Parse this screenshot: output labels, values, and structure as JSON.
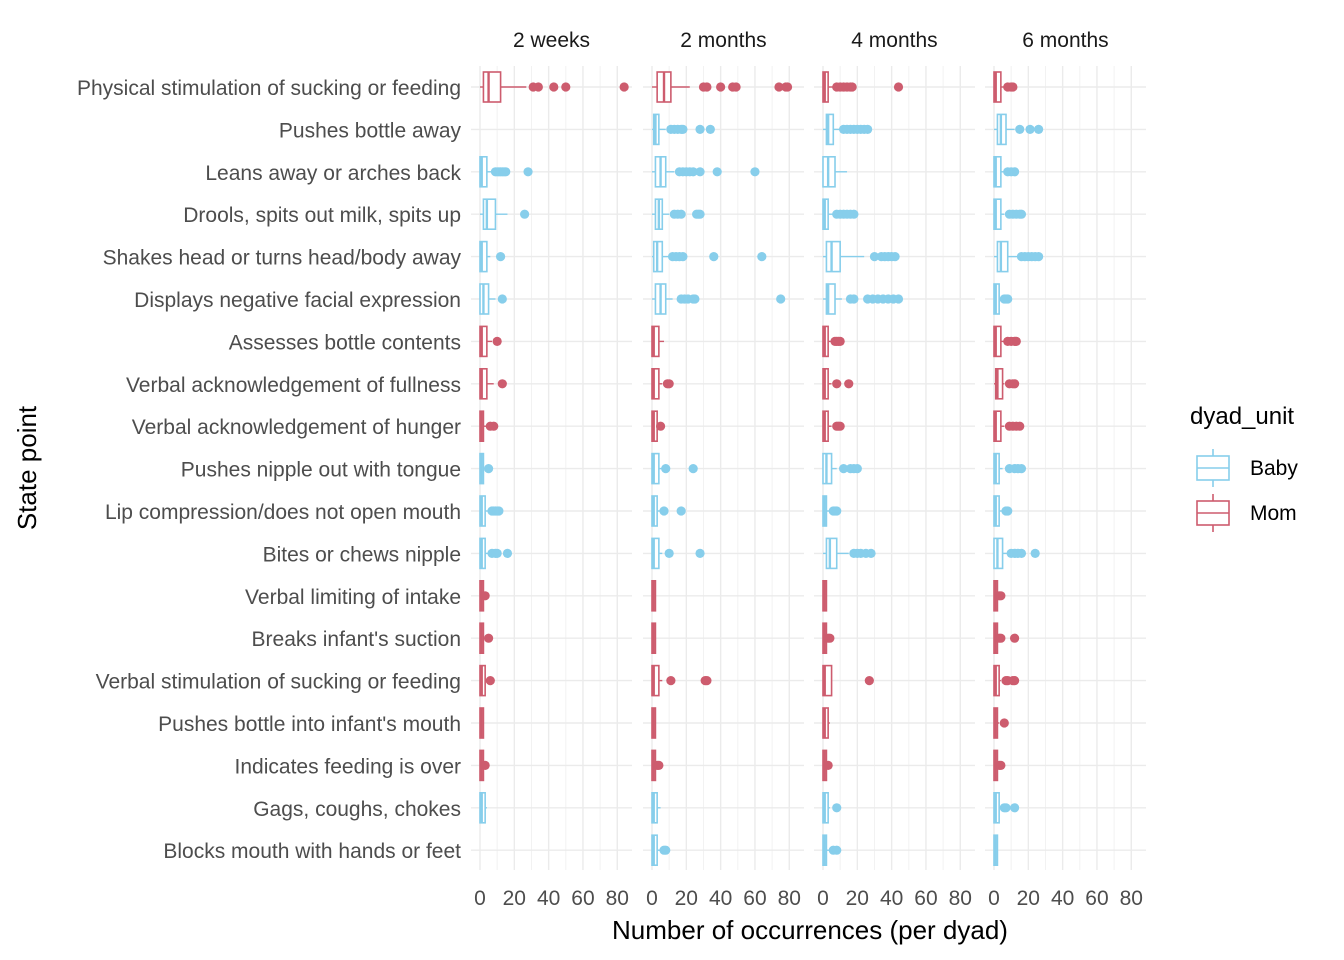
{
  "chart_data": {
    "type": "boxplot",
    "orientation": "horizontal",
    "facets": [
      "2 weeks",
      "2 months",
      "4 months",
      "6 months"
    ],
    "xlabel": "Number of occurrences (per dyad)",
    "ylabel": "State point",
    "xlim": [
      0,
      85
    ],
    "xticks": [
      "0",
      "20",
      "40",
      "60",
      "80"
    ],
    "legend": {
      "title": "dyad_unit",
      "position": "right",
      "entries": [
        {
          "label": "Baby",
          "color": "#87CEEB"
        },
        {
          "label": "Mom",
          "color": "#CD5C6E"
        }
      ]
    },
    "grid": true,
    "categories": [
      "Physical stimulation of sucking or feeding",
      "Pushes bottle away",
      "Leans away or arches back",
      "Drools, spits out milk, spits up",
      "Shakes head or turns head/body away",
      "Displays negative facial expression",
      "Assesses bottle contents",
      "Verbal acknowledgement of fullness",
      "Verbal acknowledgement of hunger",
      "Pushes nipple out with tongue",
      "Lip compression/does not open mouth",
      "Bites or chews nipple",
      "Verbal limiting of intake",
      "Breaks infant's suction",
      "Verbal stimulation of sucking or feeding",
      "Pushes bottle into infant's mouth",
      "Indicates feeding is over",
      "Gags, coughs, chokes",
      "Blocks mouth with hands or feet"
    ],
    "unit": [
      "Mom",
      "Baby",
      "Baby",
      "Baby",
      "Baby",
      "Baby",
      "Mom",
      "Mom",
      "Mom",
      "Baby",
      "Baby",
      "Baby",
      "Mom",
      "Mom",
      "Mom",
      "Mom",
      "Mom",
      "Baby",
      "Baby"
    ],
    "boxes": [
      [
        {
          "q1": 2,
          "med": 5,
          "q3": 12,
          "lo": 0,
          "hi": 27,
          "out": [
            31,
            34,
            43,
            50,
            84
          ]
        },
        null,
        {
          "q1": 0,
          "med": 1,
          "q3": 4,
          "lo": 0,
          "hi": 8,
          "out": [
            9,
            10,
            11,
            12,
            13,
            14,
            15,
            28
          ]
        },
        {
          "q1": 2,
          "med": 4,
          "q3": 9,
          "lo": 0,
          "hi": 16,
          "out": [
            26
          ]
        },
        {
          "q1": 0,
          "med": 1,
          "q3": 4,
          "lo": 0,
          "hi": 6,
          "out": [
            12
          ]
        },
        {
          "q1": 0,
          "med": 2,
          "q3": 5,
          "lo": 0,
          "hi": 9,
          "out": [
            13
          ]
        },
        {
          "q1": 0,
          "med": 1,
          "q3": 4,
          "lo": 0,
          "hi": 7,
          "out": [
            10
          ]
        },
        {
          "q1": 0,
          "med": 1,
          "q3": 4,
          "lo": 0,
          "hi": 8,
          "out": [
            13
          ]
        },
        {
          "q1": 0,
          "med": 1,
          "q3": 2,
          "lo": 0,
          "hi": 4,
          "out": [
            6,
            8
          ]
        },
        {
          "q1": 0,
          "med": 1,
          "q3": 2,
          "lo": 0,
          "hi": 4,
          "out": [
            5
          ]
        },
        {
          "q1": 0,
          "med": 1,
          "q3": 3,
          "lo": 0,
          "hi": 6,
          "out": [
            7,
            8,
            9,
            10,
            11
          ]
        },
        {
          "q1": 0,
          "med": 1,
          "q3": 3,
          "lo": 0,
          "hi": 5,
          "out": [
            7,
            9,
            10,
            16
          ]
        },
        {
          "q1": 0,
          "med": 1,
          "q3": 2,
          "lo": 0,
          "hi": 2,
          "out": [
            3
          ]
        },
        {
          "q1": 0,
          "med": 1,
          "q3": 2,
          "lo": 0,
          "hi": 3,
          "out": [
            5
          ]
        },
        {
          "q1": 0,
          "med": 1,
          "q3": 3,
          "lo": 0,
          "hi": 5,
          "out": [
            6
          ]
        },
        {
          "q1": 0,
          "med": 1,
          "q3": 2,
          "lo": 0,
          "hi": 2,
          "out": []
        },
        {
          "q1": 0,
          "med": 1,
          "q3": 2,
          "lo": 0,
          "hi": 3,
          "out": [
            3
          ]
        },
        {
          "q1": 0,
          "med": 1,
          "q3": 3,
          "lo": 0,
          "hi": 4,
          "out": []
        },
        null
      ],
      [
        {
          "q1": 3,
          "med": 7,
          "q3": 11,
          "lo": 0,
          "hi": 22,
          "out": [
            30,
            32,
            40,
            47,
            49,
            74,
            78,
            79
          ]
        },
        {
          "q1": 1,
          "med": 2,
          "q3": 4,
          "lo": 0,
          "hi": 8,
          "out": [
            11,
            13,
            15,
            17,
            18,
            28,
            34
          ]
        },
        {
          "q1": 2,
          "med": 5,
          "q3": 8,
          "lo": 0,
          "hi": 13,
          "out": [
            16,
            18,
            20,
            22,
            24,
            28,
            38,
            60
          ]
        },
        {
          "q1": 2,
          "med": 4,
          "q3": 6,
          "lo": 0,
          "hi": 10,
          "out": [
            13,
            15,
            17,
            26,
            27,
            28
          ]
        },
        {
          "q1": 1,
          "med": 3,
          "q3": 6,
          "lo": 0,
          "hi": 10,
          "out": [
            12,
            14,
            16,
            18,
            36,
            64
          ]
        },
        {
          "q1": 2,
          "med": 5,
          "q3": 8,
          "lo": 0,
          "hi": 12,
          "out": [
            17,
            19,
            21,
            24,
            25,
            75
          ]
        },
        {
          "q1": 0,
          "med": 1,
          "q3": 4,
          "lo": 0,
          "hi": 7,
          "out": []
        },
        {
          "q1": 0,
          "med": 1,
          "q3": 4,
          "lo": 0,
          "hi": 6,
          "out": [
            9,
            10
          ]
        },
        {
          "q1": 0,
          "med": 1,
          "q3": 3,
          "lo": 0,
          "hi": 5,
          "out": [
            5
          ]
        },
        {
          "q1": 0,
          "med": 1,
          "q3": 4,
          "lo": 0,
          "hi": 6,
          "out": [
            8,
            24
          ]
        },
        {
          "q1": 0,
          "med": 1,
          "q3": 3,
          "lo": 0,
          "hi": 5,
          "out": [
            7,
            17
          ]
        },
        {
          "q1": 0,
          "med": 1,
          "q3": 4,
          "lo": 0,
          "hi": 6,
          "out": [
            10,
            28
          ]
        },
        {
          "q1": 0,
          "med": 1,
          "q3": 2,
          "lo": 0,
          "hi": 2,
          "out": []
        },
        {
          "q1": 0,
          "med": 1,
          "q3": 2,
          "lo": 0,
          "hi": 2,
          "out": []
        },
        {
          "q1": 0,
          "med": 1,
          "q3": 4,
          "lo": 0,
          "hi": 6,
          "out": [
            11,
            31,
            32
          ]
        },
        {
          "q1": 0,
          "med": 1,
          "q3": 2,
          "lo": 0,
          "hi": 2,
          "out": []
        },
        {
          "q1": 0,
          "med": 1,
          "q3": 2,
          "lo": 0,
          "hi": 3,
          "out": [
            3,
            4
          ]
        },
        {
          "q1": 0,
          "med": 1,
          "q3": 3,
          "lo": 0,
          "hi": 5,
          "out": []
        },
        {
          "q1": 0,
          "med": 1,
          "q3": 3,
          "lo": 0,
          "hi": 5,
          "out": [
            7,
            8
          ]
        }
      ],
      [
        {
          "q1": 0,
          "med": 1,
          "q3": 3,
          "lo": 0,
          "hi": 6,
          "out": [
            8,
            10,
            12,
            14,
            16,
            17,
            44
          ]
        },
        {
          "q1": 2,
          "med": 3,
          "q3": 6,
          "lo": 0,
          "hi": 10,
          "out": [
            12,
            14,
            16,
            18,
            20,
            22,
            24,
            26
          ]
        },
        {
          "q1": 0,
          "med": 3,
          "q3": 7,
          "lo": 0,
          "hi": 14,
          "out": []
        },
        {
          "q1": 0,
          "med": 1,
          "q3": 3,
          "lo": 0,
          "hi": 6,
          "out": [
            8,
            10,
            12,
            14,
            16,
            18
          ]
        },
        {
          "q1": 2,
          "med": 5,
          "q3": 10,
          "lo": 0,
          "hi": 24,
          "out": [
            30,
            34,
            36,
            38,
            40,
            42
          ]
        },
        {
          "q1": 2,
          "med": 3,
          "q3": 7,
          "lo": 0,
          "hi": 11,
          "out": [
            16,
            18,
            26,
            29,
            32,
            35,
            38,
            41,
            44
          ]
        },
        {
          "q1": 0,
          "med": 1,
          "q3": 3,
          "lo": 0,
          "hi": 5,
          "out": [
            7,
            8,
            9,
            10
          ]
        },
        {
          "q1": 0,
          "med": 1,
          "q3": 3,
          "lo": 0,
          "hi": 5,
          "out": [
            8,
            15
          ]
        },
        {
          "q1": 0,
          "med": 1,
          "q3": 3,
          "lo": 0,
          "hi": 5,
          "out": [
            8,
            9,
            10
          ]
        },
        {
          "q1": 0,
          "med": 2,
          "q3": 5,
          "lo": 0,
          "hi": 8,
          "out": [
            12,
            16,
            18,
            20
          ]
        },
        {
          "q1": 0,
          "med": 1,
          "q3": 2,
          "lo": 0,
          "hi": 4,
          "out": [
            6,
            7,
            8
          ]
        },
        {
          "q1": 2,
          "med": 4,
          "q3": 8,
          "lo": 0,
          "hi": 15,
          "out": [
            18,
            20,
            22,
            25,
            28
          ]
        },
        {
          "q1": 0,
          "med": 1,
          "q3": 2,
          "lo": 0,
          "hi": 2,
          "out": []
        },
        {
          "q1": 0,
          "med": 1,
          "q3": 2,
          "lo": 0,
          "hi": 3,
          "out": [
            3,
            4
          ]
        },
        {
          "q1": 0,
          "med": 1,
          "q3": 5,
          "lo": 0,
          "hi": 5,
          "out": [
            27
          ]
        },
        {
          "q1": 0,
          "med": 1,
          "q3": 3,
          "lo": 0,
          "hi": 4,
          "out": []
        },
        {
          "q1": 0,
          "med": 1,
          "q3": 2,
          "lo": 0,
          "hi": 3,
          "out": [
            3
          ]
        },
        {
          "q1": 0,
          "med": 1,
          "q3": 3,
          "lo": 0,
          "hi": 4,
          "out": [
            8
          ]
        },
        {
          "q1": 0,
          "med": 1,
          "q3": 2,
          "lo": 0,
          "hi": 4,
          "out": [
            6,
            8
          ]
        }
      ],
      [
        {
          "q1": 0,
          "med": 1,
          "q3": 4,
          "lo": 0,
          "hi": 6,
          "out": [
            8,
            10,
            11
          ]
        },
        {
          "q1": 2,
          "med": 4,
          "q3": 7,
          "lo": 0,
          "hi": 12,
          "out": [
            15,
            21,
            26
          ]
        },
        {
          "q1": 0,
          "med": 1,
          "q3": 4,
          "lo": 0,
          "hi": 6,
          "out": [
            8,
            10,
            12
          ]
        },
        {
          "q1": 0,
          "med": 1,
          "q3": 4,
          "lo": 0,
          "hi": 6,
          "out": [
            9,
            11,
            13,
            15,
            16
          ]
        },
        {
          "q1": 2,
          "med": 4,
          "q3": 8,
          "lo": 0,
          "hi": 14,
          "out": [
            16,
            18,
            20,
            22,
            24,
            26
          ]
        },
        {
          "q1": 0,
          "med": 1,
          "q3": 3,
          "lo": 0,
          "hi": 4,
          "out": [
            6,
            7,
            8
          ]
        },
        {
          "q1": 0,
          "med": 1,
          "q3": 4,
          "lo": 0,
          "hi": 6,
          "out": [
            8,
            10,
            12,
            13
          ]
        },
        {
          "q1": 1,
          "med": 2,
          "q3": 5,
          "lo": 0,
          "hi": 6,
          "out": [
            9,
            11,
            12
          ]
        },
        {
          "q1": 0,
          "med": 1,
          "q3": 4,
          "lo": 0,
          "hi": 6,
          "out": [
            9,
            11,
            13,
            15
          ]
        },
        {
          "q1": 0,
          "med": 1,
          "q3": 3,
          "lo": 0,
          "hi": 5,
          "out": [
            9,
            12,
            14,
            16
          ]
        },
        {
          "q1": 0,
          "med": 1,
          "q3": 3,
          "lo": 0,
          "hi": 5,
          "out": [
            7,
            8
          ]
        },
        {
          "q1": 0,
          "med": 2,
          "q3": 5,
          "lo": 0,
          "hi": 8,
          "out": [
            10,
            12,
            14,
            16,
            24
          ]
        },
        {
          "q1": 0,
          "med": 1,
          "q3": 2,
          "lo": 0,
          "hi": 2,
          "out": [
            3,
            4
          ]
        },
        {
          "q1": 0,
          "med": 1,
          "q3": 2,
          "lo": 0,
          "hi": 3,
          "out": [
            3,
            4,
            12
          ]
        },
        {
          "q1": 0,
          "med": 1,
          "q3": 3,
          "lo": 0,
          "hi": 4,
          "out": [
            7,
            8,
            11,
            12
          ]
        },
        {
          "q1": 0,
          "med": 1,
          "q3": 2,
          "lo": 0,
          "hi": 3,
          "out": [
            6
          ]
        },
        {
          "q1": 0,
          "med": 1,
          "q3": 2,
          "lo": 0,
          "hi": 3,
          "out": [
            3,
            4
          ]
        },
        {
          "q1": 0,
          "med": 1,
          "q3": 3,
          "lo": 0,
          "hi": 4,
          "out": [
            6,
            7,
            12
          ]
        },
        {
          "q1": 0,
          "med": 1,
          "q3": 2,
          "lo": 0,
          "hi": 2,
          "out": []
        }
      ]
    ]
  }
}
